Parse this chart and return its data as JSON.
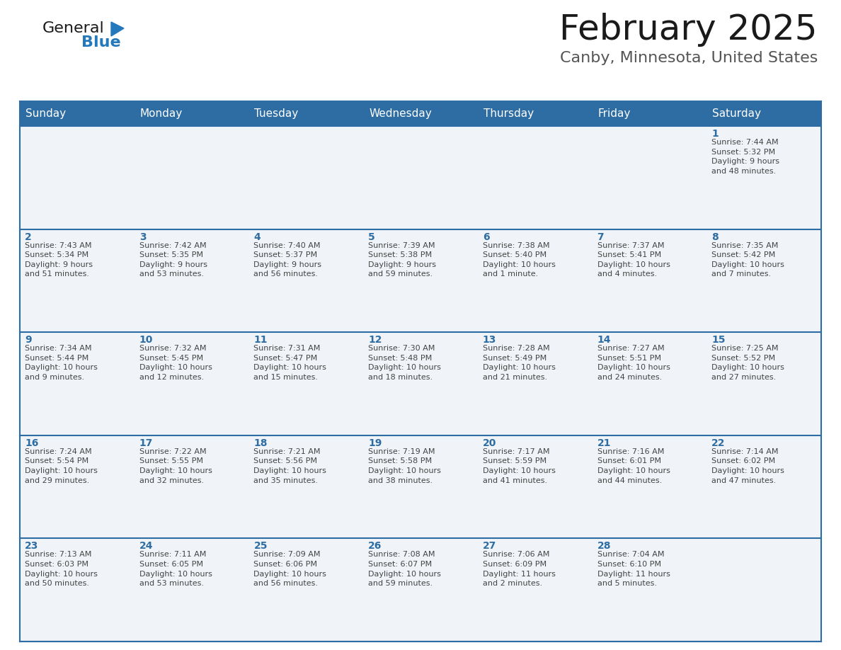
{
  "title": "February 2025",
  "subtitle": "Canby, Minnesota, United States",
  "header_bg_color": "#2e6da4",
  "header_text_color": "#ffffff",
  "cell_bg_color": "#f0f4f8",
  "day_number_color": "#2e6da4",
  "cell_text_color": "#444444",
  "grid_color": "#2e6da4",
  "days_of_week": [
    "Sunday",
    "Monday",
    "Tuesday",
    "Wednesday",
    "Thursday",
    "Friday",
    "Saturday"
  ],
  "weeks": [
    [
      {
        "day": null,
        "info": null
      },
      {
        "day": null,
        "info": null
      },
      {
        "day": null,
        "info": null
      },
      {
        "day": null,
        "info": null
      },
      {
        "day": null,
        "info": null
      },
      {
        "day": null,
        "info": null
      },
      {
        "day": 1,
        "info": "Sunrise: 7:44 AM\nSunset: 5:32 PM\nDaylight: 9 hours\nand 48 minutes."
      }
    ],
    [
      {
        "day": 2,
        "info": "Sunrise: 7:43 AM\nSunset: 5:34 PM\nDaylight: 9 hours\nand 51 minutes."
      },
      {
        "day": 3,
        "info": "Sunrise: 7:42 AM\nSunset: 5:35 PM\nDaylight: 9 hours\nand 53 minutes."
      },
      {
        "day": 4,
        "info": "Sunrise: 7:40 AM\nSunset: 5:37 PM\nDaylight: 9 hours\nand 56 minutes."
      },
      {
        "day": 5,
        "info": "Sunrise: 7:39 AM\nSunset: 5:38 PM\nDaylight: 9 hours\nand 59 minutes."
      },
      {
        "day": 6,
        "info": "Sunrise: 7:38 AM\nSunset: 5:40 PM\nDaylight: 10 hours\nand 1 minute."
      },
      {
        "day": 7,
        "info": "Sunrise: 7:37 AM\nSunset: 5:41 PM\nDaylight: 10 hours\nand 4 minutes."
      },
      {
        "day": 8,
        "info": "Sunrise: 7:35 AM\nSunset: 5:42 PM\nDaylight: 10 hours\nand 7 minutes."
      }
    ],
    [
      {
        "day": 9,
        "info": "Sunrise: 7:34 AM\nSunset: 5:44 PM\nDaylight: 10 hours\nand 9 minutes."
      },
      {
        "day": 10,
        "info": "Sunrise: 7:32 AM\nSunset: 5:45 PM\nDaylight: 10 hours\nand 12 minutes."
      },
      {
        "day": 11,
        "info": "Sunrise: 7:31 AM\nSunset: 5:47 PM\nDaylight: 10 hours\nand 15 minutes."
      },
      {
        "day": 12,
        "info": "Sunrise: 7:30 AM\nSunset: 5:48 PM\nDaylight: 10 hours\nand 18 minutes."
      },
      {
        "day": 13,
        "info": "Sunrise: 7:28 AM\nSunset: 5:49 PM\nDaylight: 10 hours\nand 21 minutes."
      },
      {
        "day": 14,
        "info": "Sunrise: 7:27 AM\nSunset: 5:51 PM\nDaylight: 10 hours\nand 24 minutes."
      },
      {
        "day": 15,
        "info": "Sunrise: 7:25 AM\nSunset: 5:52 PM\nDaylight: 10 hours\nand 27 minutes."
      }
    ],
    [
      {
        "day": 16,
        "info": "Sunrise: 7:24 AM\nSunset: 5:54 PM\nDaylight: 10 hours\nand 29 minutes."
      },
      {
        "day": 17,
        "info": "Sunrise: 7:22 AM\nSunset: 5:55 PM\nDaylight: 10 hours\nand 32 minutes."
      },
      {
        "day": 18,
        "info": "Sunrise: 7:21 AM\nSunset: 5:56 PM\nDaylight: 10 hours\nand 35 minutes."
      },
      {
        "day": 19,
        "info": "Sunrise: 7:19 AM\nSunset: 5:58 PM\nDaylight: 10 hours\nand 38 minutes."
      },
      {
        "day": 20,
        "info": "Sunrise: 7:17 AM\nSunset: 5:59 PM\nDaylight: 10 hours\nand 41 minutes."
      },
      {
        "day": 21,
        "info": "Sunrise: 7:16 AM\nSunset: 6:01 PM\nDaylight: 10 hours\nand 44 minutes."
      },
      {
        "day": 22,
        "info": "Sunrise: 7:14 AM\nSunset: 6:02 PM\nDaylight: 10 hours\nand 47 minutes."
      }
    ],
    [
      {
        "day": 23,
        "info": "Sunrise: 7:13 AM\nSunset: 6:03 PM\nDaylight: 10 hours\nand 50 minutes."
      },
      {
        "day": 24,
        "info": "Sunrise: 7:11 AM\nSunset: 6:05 PM\nDaylight: 10 hours\nand 53 minutes."
      },
      {
        "day": 25,
        "info": "Sunrise: 7:09 AM\nSunset: 6:06 PM\nDaylight: 10 hours\nand 56 minutes."
      },
      {
        "day": 26,
        "info": "Sunrise: 7:08 AM\nSunset: 6:07 PM\nDaylight: 10 hours\nand 59 minutes."
      },
      {
        "day": 27,
        "info": "Sunrise: 7:06 AM\nSunset: 6:09 PM\nDaylight: 11 hours\nand 2 minutes."
      },
      {
        "day": 28,
        "info": "Sunrise: 7:04 AM\nSunset: 6:10 PM\nDaylight: 11 hours\nand 5 minutes."
      },
      {
        "day": null,
        "info": null
      }
    ]
  ],
  "title_fontsize": 36,
  "subtitle_fontsize": 16,
  "header_fontsize": 11,
  "day_num_fontsize": 10,
  "cell_text_fontsize": 8,
  "logo_general_color": "#1a1a1a",
  "logo_blue_color": "#2479bd",
  "logo_triangle_color": "#2479bd"
}
